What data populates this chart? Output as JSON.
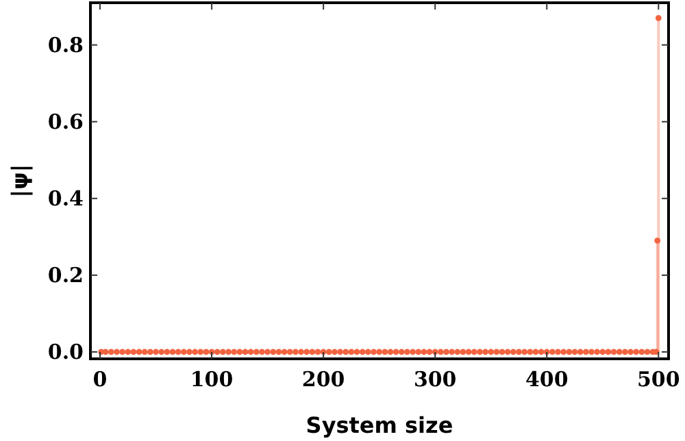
{
  "chart_data": {
    "type": "lollipop",
    "xlabel": "System size",
    "ylabel": "|ψ|",
    "x": [
      1,
      5,
      10,
      15,
      20,
      25,
      30,
      35,
      40,
      45,
      50,
      55,
      60,
      65,
      70,
      75,
      80,
      85,
      90,
      95,
      100,
      105,
      110,
      115,
      120,
      125,
      130,
      135,
      140,
      145,
      150,
      155,
      160,
      165,
      170,
      175,
      180,
      185,
      190,
      195,
      200,
      205,
      210,
      215,
      220,
      225,
      230,
      235,
      240,
      245,
      250,
      255,
      260,
      265,
      270,
      275,
      280,
      285,
      290,
      295,
      300,
      305,
      310,
      315,
      320,
      325,
      330,
      335,
      340,
      345,
      350,
      355,
      360,
      365,
      370,
      375,
      380,
      385,
      390,
      395,
      400,
      405,
      410,
      415,
      420,
      425,
      430,
      435,
      440,
      445,
      450,
      455,
      460,
      465,
      470,
      475,
      480,
      485,
      490,
      495,
      498,
      499,
      500
    ],
    "series": [
      {
        "color": "#f26440",
        "values": [
          0,
          0,
          0,
          0,
          0,
          0,
          0,
          0,
          0,
          0,
          0,
          0,
          0,
          0,
          0,
          0,
          0,
          0,
          0,
          0,
          0,
          0,
          0,
          0,
          0,
          0,
          0,
          0,
          0,
          0,
          0,
          0,
          0,
          0,
          0,
          0,
          0,
          0,
          0,
          0,
          0,
          0,
          0,
          0,
          0,
          0,
          0,
          0,
          0,
          0,
          0,
          0,
          0,
          0,
          0,
          0,
          0,
          0,
          0,
          0,
          0,
          0,
          0,
          0,
          0,
          0,
          0,
          0,
          0,
          0,
          0,
          0,
          0,
          0,
          0,
          0,
          0,
          0,
          0,
          0,
          0,
          0,
          0,
          0,
          0,
          0,
          0,
          0,
          0,
          0,
          0,
          0,
          0,
          0,
          0,
          0,
          0,
          0,
          0,
          0,
          0,
          0.29,
          0.87
        ]
      }
    ],
    "xlim": [
      -8.6,
      509
    ],
    "ylim": [
      -0.018,
      0.91
    ],
    "xticks": [
      0,
      100,
      200,
      300,
      400,
      500
    ],
    "yticks": [
      {
        "value": 0,
        "label": "0.0"
      },
      {
        "value": 0.2,
        "label": "0.2"
      },
      {
        "value": 0.4,
        "label": "0.4"
      },
      {
        "value": 0.6,
        "label": "0.6"
      },
      {
        "value": 0.8,
        "label": "0.8"
      }
    ],
    "marker": "circle"
  }
}
